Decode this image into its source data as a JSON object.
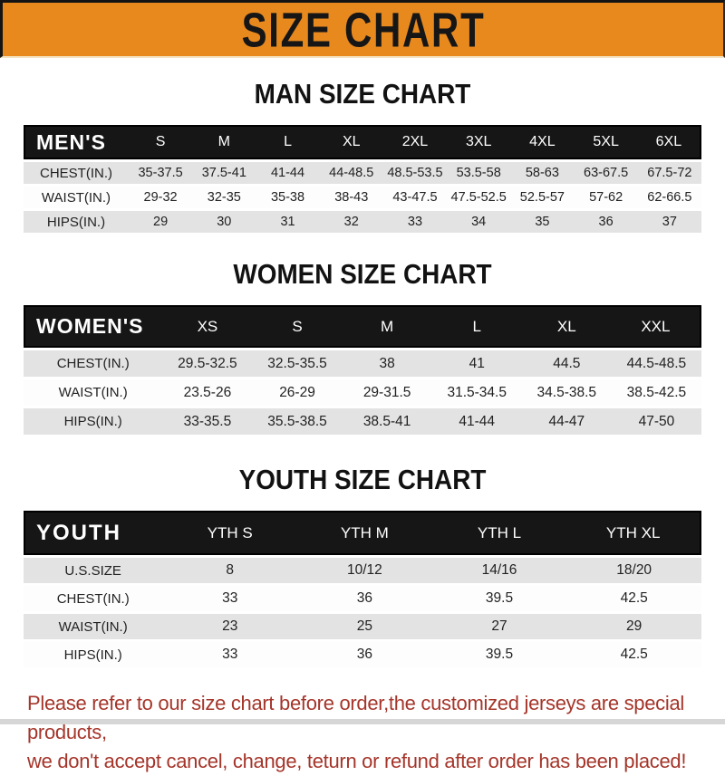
{
  "banner": {
    "title": "SIZE CHART"
  },
  "sections": [
    {
      "title": "MAN SIZE CHART",
      "table": {
        "header_label": "MEN'S",
        "columns": [
          "S",
          "M",
          "L",
          "XL",
          "2XL",
          "3XL",
          "4XL",
          "5XL",
          "6XL"
        ],
        "rows": [
          {
            "label": "CHEST(IN.)",
            "values": [
              "35-37.5",
              "37.5-41",
              "41-44",
              "44-48.5",
              "48.5-53.5",
              "53.5-58",
              "58-63",
              "63-67.5",
              "67.5-72"
            ]
          },
          {
            "label": "WAIST(IN.)",
            "values": [
              "29-32",
              "32-35",
              "35-38",
              "38-43",
              "43-47.5",
              "47.5-52.5",
              "52.5-57",
              "57-62",
              "62-66.5"
            ]
          },
          {
            "label": "HIPS(IN.)",
            "values": [
              "29",
              "30",
              "31",
              "32",
              "33",
              "34",
              "35",
              "36",
              "37"
            ]
          }
        ]
      }
    },
    {
      "title": "WOMEN SIZE CHART",
      "table": {
        "header_label": "WOMEN'S",
        "columns": [
          "XS",
          "S",
          "M",
          "L",
          "XL",
          "XXL"
        ],
        "rows": [
          {
            "label": "CHEST(IN.)",
            "values": [
              "29.5-32.5",
              "32.5-35.5",
              "38",
              "41",
              "44.5",
              "44.5-48.5"
            ]
          },
          {
            "label": "WAIST(IN.)",
            "values": [
              "23.5-26",
              "26-29",
              "29-31.5",
              "31.5-34.5",
              "34.5-38.5",
              "38.5-42.5"
            ]
          },
          {
            "label": "HIPS(IN.)",
            "values": [
              "33-35.5",
              "35.5-38.5",
              "38.5-41",
              "41-44",
              "44-47",
              "47-50"
            ]
          }
        ]
      }
    },
    {
      "title": "YOUTH SIZE CHART",
      "table": {
        "header_label": "YOUTH",
        "columns": [
          "YTH S",
          "YTH M",
          "YTH L",
          "YTH XL"
        ],
        "rows": [
          {
            "label": "U.S.SIZE",
            "values": [
              "8",
              "10/12",
              "14/16",
              "18/20"
            ]
          },
          {
            "label": "CHEST(IN.)",
            "values": [
              "33",
              "36",
              "39.5",
              "42.5"
            ]
          },
          {
            "label": "WAIST(IN.)",
            "values": [
              "23",
              "25",
              "27",
              "29"
            ]
          },
          {
            "label": "HIPS(IN.)",
            "values": [
              "33",
              "36",
              "39.5",
              "42.5"
            ]
          }
        ]
      }
    }
  ],
  "footer": {
    "line1": "Please refer to our size chart before order,the customized jerseys are special products,",
    "line2": "we don't accept cancel, change, teturn or refund after order has been placed!"
  },
  "colors": {
    "banner_bg": "#e8891e",
    "table_header_bg": "#161616",
    "row_alt_bg": "#e3e3e3",
    "footer_text": "#a5352a"
  }
}
